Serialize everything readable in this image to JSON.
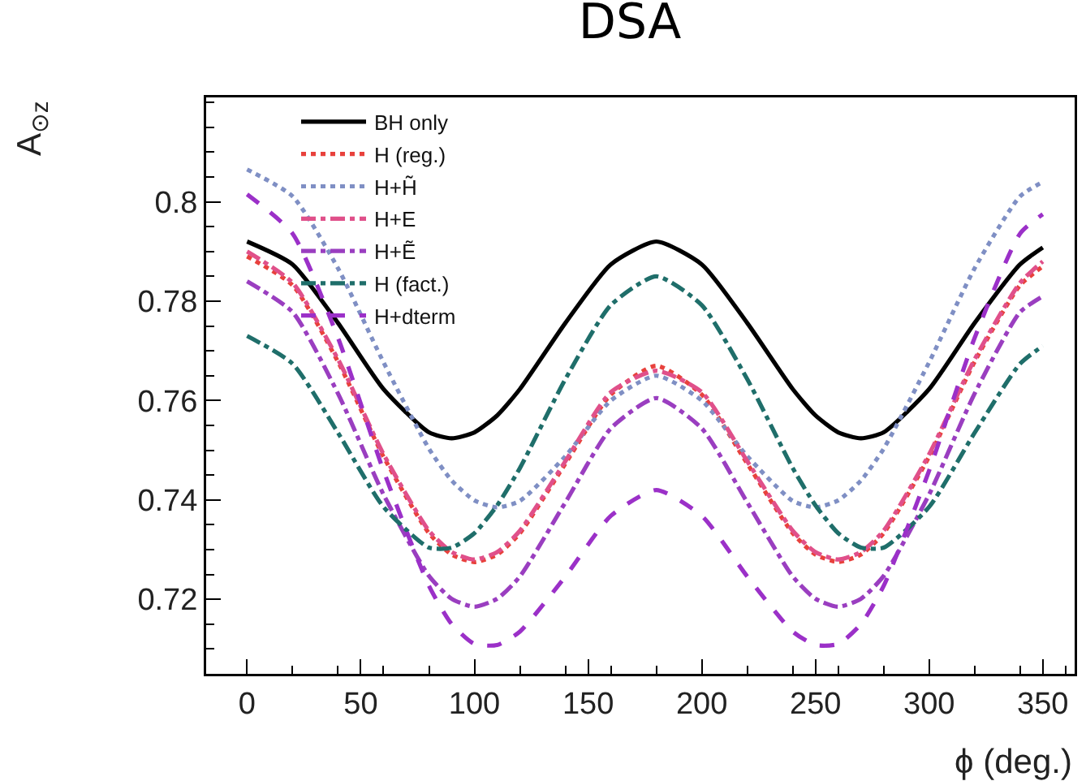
{
  "chart_data": {
    "type": "line",
    "title": "DSA",
    "xlabel": "ϕ (deg.)",
    "ylabel": "A$_{⊙z}$",
    "x": [
      0,
      20,
      40,
      60,
      80,
      90,
      100,
      110,
      120,
      140,
      160,
      180,
      200,
      220,
      240,
      250,
      260,
      270,
      280,
      300,
      320,
      340,
      350
    ],
    "xlim": [
      -18,
      364
    ],
    "ylim": [
      0.705,
      0.821
    ],
    "xticks": [
      0,
      50,
      100,
      150,
      200,
      250,
      300,
      350
    ],
    "yticks": [
      0.72,
      0.74,
      0.76,
      0.78,
      0.8
    ],
    "grid": false,
    "legend": "top left",
    "marker": "none",
    "series": [
      {
        "name": "BH only",
        "color": "#000000",
        "line_style": "solid",
        "values": [
          0.792,
          0.7874,
          0.7756,
          0.7623,
          0.7536,
          0.7524,
          0.7536,
          0.757,
          0.7623,
          0.7756,
          0.7874,
          0.792,
          0.7874,
          0.7756,
          0.7623,
          0.757,
          0.7536,
          0.7524,
          0.7536,
          0.7623,
          0.7756,
          0.7874,
          0.7908
        ]
      },
      {
        "name": "H (reg.)",
        "color": "#e8413c",
        "line_style": "dotted",
        "values": [
          0.789,
          0.7832,
          0.7678,
          0.7487,
          0.7333,
          0.729,
          0.7275,
          0.729,
          0.7333,
          0.7473,
          0.7612,
          0.767,
          0.7612,
          0.7473,
          0.7333,
          0.729,
          0.7275,
          0.729,
          0.7333,
          0.7487,
          0.7678,
          0.7832,
          0.787
        ]
      },
      {
        "name": "H+H̃",
        "color": "#7f8fc4",
        "line_style": "dotted",
        "values": [
          0.8065,
          0.8011,
          0.7866,
          0.7677,
          0.7503,
          0.7439,
          0.7399,
          0.7385,
          0.7398,
          0.7488,
          0.76,
          0.765,
          0.76,
          0.7488,
          0.7398,
          0.7385,
          0.7399,
          0.7439,
          0.7503,
          0.7677,
          0.7866,
          0.8011,
          0.804
        ]
      },
      {
        "name": "H+E",
        "color": "#e0508a",
        "line_style": "dashdot",
        "values": [
          0.79,
          0.7837,
          0.7683,
          0.7492,
          0.7338,
          0.7295,
          0.728,
          0.7295,
          0.7338,
          0.7478,
          0.7617,
          0.766,
          0.7617,
          0.7478,
          0.7338,
          0.7295,
          0.728,
          0.7295,
          0.7338,
          0.7492,
          0.7683,
          0.7837,
          0.788
        ]
      },
      {
        "name": "H+Ẽ",
        "color": "#9a3ec0",
        "line_style": "dashdot",
        "values": [
          0.784,
          0.7778,
          0.7614,
          0.7411,
          0.7247,
          0.7201,
          0.7185,
          0.7201,
          0.7246,
          0.7395,
          0.7544,
          0.7605,
          0.7544,
          0.7395,
          0.7246,
          0.7201,
          0.7185,
          0.7201,
          0.7247,
          0.7411,
          0.7614,
          0.7778,
          0.781
        ]
      },
      {
        "name": "H (fact.)",
        "color": "#1f6e6a",
        "line_style": "dashdot",
        "values": [
          0.773,
          0.7674,
          0.7535,
          0.7386,
          0.7304,
          0.7304,
          0.7333,
          0.7389,
          0.7464,
          0.7643,
          0.7792,
          0.785,
          0.7792,
          0.7643,
          0.7464,
          0.7389,
          0.7333,
          0.7304,
          0.7304,
          0.7386,
          0.7535,
          0.7674,
          0.771
        ]
      },
      {
        "name": "H+dterm",
        "color": "#9b30c8",
        "line_style": "dashed",
        "values": [
          0.8015,
          0.7936,
          0.7726,
          0.7459,
          0.7227,
          0.715,
          0.711,
          0.7108,
          0.7135,
          0.7246,
          0.7368,
          0.742,
          0.7368,
          0.7246,
          0.7135,
          0.7108,
          0.711,
          0.715,
          0.7227,
          0.7459,
          0.7726,
          0.7936,
          0.7975
        ]
      }
    ]
  }
}
